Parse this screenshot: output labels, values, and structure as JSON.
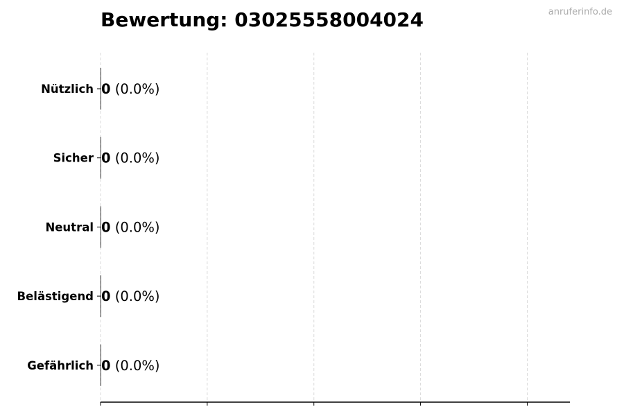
{
  "chart_data": {
    "type": "bar",
    "orientation": "horizontal",
    "title": "Bewertung: 03025558004024",
    "watermark": "anruferinfo.de",
    "categories": [
      "Nützlich",
      "Sicher",
      "Neutral",
      "Belästigend",
      "Gefährlich"
    ],
    "values": [
      0,
      0,
      0,
      0,
      0
    ],
    "value_labels": [
      "0",
      "0",
      "0",
      "0",
      "0"
    ],
    "percent_labels": [
      "(0.0%)",
      "(0.0%)",
      "(0.0%)",
      "(0.0%)",
      "(0.0%)"
    ],
    "xlabel": "",
    "ylabel": "",
    "xlim": [
      0,
      4.4
    ],
    "xticks": [
      0,
      1,
      2,
      3,
      4
    ],
    "grid": "x, dashed",
    "bar_color": "#000000",
    "grid_color": "#d9d9d9"
  }
}
